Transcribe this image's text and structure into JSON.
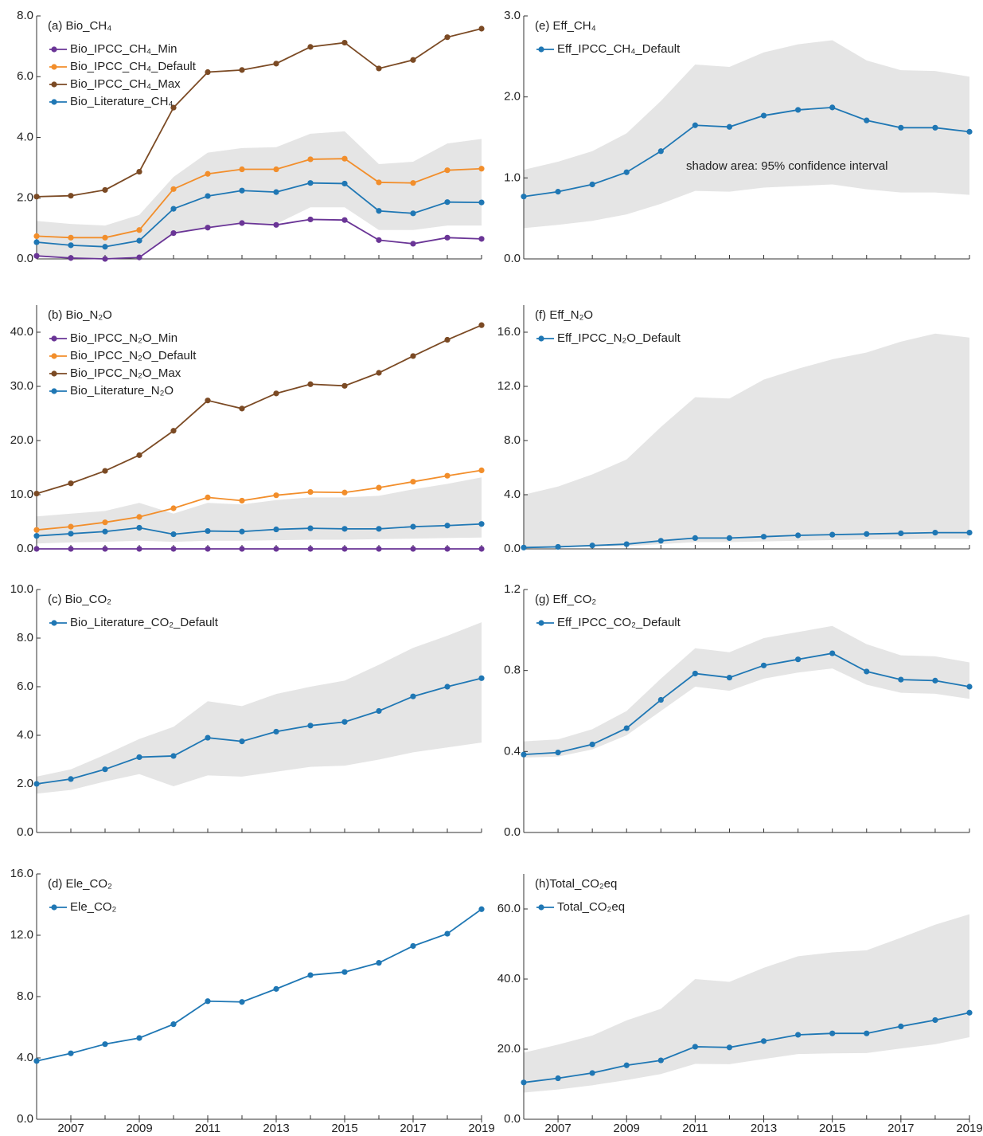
{
  "chart_data": [
    {
      "type": "line",
      "title": "(a) Bio_CH₄",
      "x": [
        2006,
        2007,
        2008,
        2009,
        2010,
        2011,
        2012,
        2013,
        2014,
        2015,
        2016,
        2017,
        2018,
        2019
      ],
      "xlim": [
        2006,
        2019
      ],
      "ylim": [
        0,
        8
      ],
      "yticks": [
        {
          "value": 0,
          "label": "0.0"
        },
        {
          "value": 2,
          "label": "2.0"
        },
        {
          "value": 4,
          "label": "4.0"
        },
        {
          "value": 6,
          "label": "6.0"
        },
        {
          "value": 8,
          "label": "8.0"
        }
      ],
      "band": {
        "color": "#e5e5e5",
        "lower": [
          0.1,
          0.05,
          0,
          0.1,
          0.85,
          1.05,
          1.2,
          1.15,
          1.7,
          1.7,
          0.95,
          0.95,
          1.1,
          1.1
        ],
        "upper": [
          1.25,
          1.15,
          1.1,
          1.45,
          2.7,
          3.5,
          3.65,
          3.68,
          4.12,
          4.2,
          3.12,
          3.2,
          3.8,
          3.95
        ]
      },
      "series": [
        {
          "name": "Bio_IPCC_CH₄_Min",
          "color": "#6a3596",
          "values": [
            0.1,
            0.03,
            0,
            0.05,
            0.85,
            1.03,
            1.18,
            1.12,
            1.3,
            1.28,
            0.62,
            0.5,
            0.7,
            0.66
          ]
        },
        {
          "name": "Bio_IPCC_CH₄_Default",
          "color": "#f28e2b",
          "values": [
            0.75,
            0.7,
            0.7,
            0.95,
            2.3,
            2.8,
            2.95,
            2.95,
            3.28,
            3.3,
            2.52,
            2.5,
            2.92,
            2.97
          ]
        },
        {
          "name": "Bio_IPCC_CH₄_Max",
          "color": "#7b4a24",
          "values": [
            2.05,
            2.08,
            2.27,
            2.87,
            4.98,
            6.15,
            6.22,
            6.43,
            6.98,
            7.12,
            6.27,
            6.55,
            7.3,
            7.58
          ]
        },
        {
          "name": "Bio_Literature_CH₄",
          "color": "#1f77b4",
          "values": [
            0.55,
            0.45,
            0.4,
            0.6,
            1.65,
            2.07,
            2.25,
            2.2,
            2.5,
            2.48,
            1.58,
            1.5,
            1.87,
            1.86
          ]
        }
      ]
    },
    {
      "type": "line",
      "title": "(b) Bio_N₂O",
      "x": [
        2006,
        2007,
        2008,
        2009,
        2010,
        2011,
        2012,
        2013,
        2014,
        2015,
        2016,
        2017,
        2018,
        2019
      ],
      "xlim": [
        2006,
        2019
      ],
      "ylim": [
        0,
        45
      ],
      "yticks": [
        {
          "value": 0,
          "label": "0.0"
        },
        {
          "value": 10,
          "label": "10.0"
        },
        {
          "value": 20,
          "label": "20.0"
        },
        {
          "value": 30,
          "label": "30.0"
        },
        {
          "value": 40,
          "label": "40.0"
        }
      ],
      "band": {
        "color": "#e5e5e5",
        "lower": [
          1,
          1.2,
          1.3,
          1.5,
          1.3,
          1.5,
          1.5,
          1.6,
          1.7,
          1.7,
          1.8,
          1.9,
          2,
          2.1
        ],
        "upper": [
          6,
          6.5,
          7,
          8.5,
          6.5,
          8.5,
          8.2,
          9,
          9.5,
          9.5,
          9.8,
          11,
          12,
          13.2
        ]
      },
      "series": [
        {
          "name": "Bio_IPCC_N₂O_Min",
          "color": "#6a3596",
          "values": [
            0,
            0,
            0,
            0,
            0,
            0,
            0,
            0,
            0,
            0,
            0,
            0,
            0,
            0
          ]
        },
        {
          "name": "Bio_IPCC_N₂O_Default",
          "color": "#f28e2b",
          "values": [
            3.5,
            4.1,
            4.9,
            5.9,
            7.5,
            9.5,
            8.9,
            9.9,
            10.5,
            10.4,
            11.3,
            12.4,
            13.5,
            14.5
          ]
        },
        {
          "name": "Bio_IPCC_N₂O_Max",
          "color": "#7b4a24",
          "values": [
            10.2,
            12.1,
            14.4,
            17.3,
            21.8,
            27.4,
            25.9,
            28.7,
            30.4,
            30.1,
            32.5,
            35.6,
            38.6,
            41.3
          ]
        },
        {
          "name": "Bio_Literature_N₂O",
          "color": "#1f77b4",
          "values": [
            2.4,
            2.8,
            3.2,
            3.9,
            2.7,
            3.3,
            3.2,
            3.6,
            3.8,
            3.7,
            3.7,
            4.1,
            4.3,
            4.6
          ]
        }
      ]
    },
    {
      "type": "line",
      "title": "(c) Bio_CO₂",
      "x": [
        2006,
        2007,
        2008,
        2009,
        2010,
        2011,
        2012,
        2013,
        2014,
        2015,
        2016,
        2017,
        2018,
        2019
      ],
      "xlim": [
        2006,
        2019
      ],
      "ylim": [
        0,
        10
      ],
      "yticks": [
        {
          "value": 0,
          "label": "0.0"
        },
        {
          "value": 2,
          "label": "2.0"
        },
        {
          "value": 4,
          "label": "4.0"
        },
        {
          "value": 6,
          "label": "6.0"
        },
        {
          "value": 8,
          "label": "8.0"
        },
        {
          "value": 10,
          "label": "10.0"
        }
      ],
      "band": {
        "color": "#e5e5e5",
        "lower": [
          1.6,
          1.75,
          2.1,
          2.4,
          1.9,
          2.35,
          2.3,
          2.5,
          2.7,
          2.75,
          3,
          3.3,
          3.5,
          3.7
        ],
        "upper": [
          2.3,
          2.6,
          3.2,
          3.85,
          4.35,
          5.4,
          5.2,
          5.7,
          6,
          6.25,
          6.9,
          7.6,
          8.1,
          8.65
        ]
      },
      "series": [
        {
          "name": "Bio_Literature_CO₂_Default",
          "color": "#1f77b4",
          "values": [
            2,
            2.2,
            2.6,
            3.1,
            3.15,
            3.9,
            3.75,
            4.15,
            4.4,
            4.55,
            5,
            5.6,
            6,
            6.35
          ]
        }
      ]
    },
    {
      "type": "line",
      "title": "(d) Ele_CO₂",
      "x": [
        2006,
        2007,
        2008,
        2009,
        2010,
        2011,
        2012,
        2013,
        2014,
        2015,
        2016,
        2017,
        2018,
        2019
      ],
      "xlim": [
        2006,
        2019
      ],
      "xticks": [
        2007,
        2009,
        2011,
        2013,
        2015,
        2017,
        2019
      ],
      "ylim": [
        0,
        16
      ],
      "yticks": [
        {
          "value": 0,
          "label": "0.0"
        },
        {
          "value": 4,
          "label": "4.0"
        },
        {
          "value": 8,
          "label": "8.0"
        },
        {
          "value": 12,
          "label": "12.0"
        },
        {
          "value": 16,
          "label": "16.0"
        }
      ],
      "series": [
        {
          "name": "Ele_CO₂",
          "color": "#1f77b4",
          "values": [
            3.8,
            4.3,
            4.9,
            5.3,
            6.2,
            7.7,
            7.65,
            8.5,
            9.4,
            9.6,
            10.2,
            11.3,
            12.1,
            13.7
          ]
        }
      ]
    },
    {
      "type": "line",
      "title": "(e) Eff_CH₄",
      "annotation": "shadow area: 95% confidence interval",
      "x": [
        2006,
        2007,
        2008,
        2009,
        2010,
        2011,
        2012,
        2013,
        2014,
        2015,
        2016,
        2017,
        2018,
        2019
      ],
      "xlim": [
        2006,
        2019
      ],
      "ylim": [
        0,
        3
      ],
      "yticks": [
        {
          "value": 0,
          "label": "0.0"
        },
        {
          "value": 1,
          "label": "1.0"
        },
        {
          "value": 2,
          "label": "2.0"
        },
        {
          "value": 3,
          "label": "3.0"
        }
      ],
      "band": {
        "color": "#e5e5e5",
        "lower": [
          0.38,
          0.42,
          0.47,
          0.55,
          0.68,
          0.84,
          0.83,
          0.88,
          0.9,
          0.92,
          0.86,
          0.82,
          0.82,
          0.79
        ],
        "upper": [
          1.1,
          1.2,
          1.33,
          1.55,
          1.95,
          2.4,
          2.37,
          2.55,
          2.65,
          2.7,
          2.45,
          2.33,
          2.32,
          2.25
        ]
      },
      "series": [
        {
          "name": "Eff_IPCC_CH₄_Default",
          "color": "#1f77b4",
          "values": [
            0.77,
            0.83,
            0.92,
            1.07,
            1.33,
            1.65,
            1.63,
            1.77,
            1.84,
            1.87,
            1.71,
            1.62,
            1.62,
            1.57
          ]
        }
      ]
    },
    {
      "type": "line",
      "title": "(f) Eff_N₂O",
      "x": [
        2006,
        2007,
        2008,
        2009,
        2010,
        2011,
        2012,
        2013,
        2014,
        2015,
        2016,
        2017,
        2018,
        2019
      ],
      "xlim": [
        2006,
        2019
      ],
      "ylim": [
        0,
        18
      ],
      "yticks": [
        {
          "value": 0,
          "label": "0.0"
        },
        {
          "value": 4,
          "label": "4.0"
        },
        {
          "value": 8,
          "label": "8.0"
        },
        {
          "value": 12,
          "label": "12.0"
        },
        {
          "value": 16,
          "label": "16.0"
        }
      ],
      "band": {
        "color": "#e5e5e5",
        "lower": [
          0.05,
          0.1,
          0.15,
          0.2,
          0.35,
          0.5,
          0.5,
          0.55,
          0.6,
          0.65,
          0.7,
          0.7,
          0.75,
          0.75
        ],
        "upper": [
          4,
          4.6,
          5.5,
          6.6,
          9,
          11.2,
          11.1,
          12.5,
          13.3,
          14,
          14.5,
          15.3,
          15.9,
          15.6
        ]
      },
      "series": [
        {
          "name": "Eff_IPCC_N₂O_Default",
          "color": "#1f77b4",
          "values": [
            0.1,
            0.15,
            0.25,
            0.35,
            0.6,
            0.8,
            0.8,
            0.9,
            1,
            1.05,
            1.1,
            1.15,
            1.2,
            1.2
          ]
        }
      ]
    },
    {
      "type": "line",
      "title": "(g) Eff_CO₂",
      "x": [
        2006,
        2007,
        2008,
        2009,
        2010,
        2011,
        2012,
        2013,
        2014,
        2015,
        2016,
        2017,
        2018,
        2019
      ],
      "xlim": [
        2006,
        2019
      ],
      "ylim": [
        0,
        1.2
      ],
      "yticks": [
        {
          "value": 0,
          "label": "0.0"
        },
        0.4,
        0.8,
        1.2
      ],
      "band": {
        "color": "#e5e5e5",
        "lower": [
          0.37,
          0.375,
          0.41,
          0.48,
          0.6,
          0.72,
          0.7,
          0.76,
          0.79,
          0.81,
          0.73,
          0.69,
          0.685,
          0.66
        ],
        "upper": [
          0.45,
          0.46,
          0.51,
          0.6,
          0.76,
          0.91,
          0.89,
          0.96,
          0.99,
          1.02,
          0.93,
          0.875,
          0.87,
          0.84
        ]
      },
      "series": [
        {
          "name": "Eff_IPCC_CO₂_Default",
          "color": "#1f77b4",
          "values": [
            0.385,
            0.395,
            0.435,
            0.515,
            0.655,
            0.785,
            0.765,
            0.825,
            0.855,
            0.885,
            0.795,
            0.755,
            0.75,
            0.72
          ]
        }
      ]
    },
    {
      "type": "line",
      "title": "(h)Total_CO₂eq",
      "x": [
        2006,
        2007,
        2008,
        2009,
        2010,
        2011,
        2012,
        2013,
        2014,
        2015,
        2016,
        2017,
        2018,
        2019
      ],
      "xlim": [
        2006,
        2019
      ],
      "xticks": [
        2007,
        2009,
        2011,
        2013,
        2015,
        2017,
        2019
      ],
      "ylim": [
        0,
        70
      ],
      "yticks": [
        {
          "value": 0,
          "label": "0.0"
        },
        {
          "value": 20,
          "label": "20.0"
        },
        {
          "value": 40,
          "label": "40.0"
        },
        {
          "value": 60,
          "label": "60.0"
        }
      ],
      "band": {
        "color": "#e5e5e5",
        "lower": [
          7.6,
          8.5,
          9.7,
          11.2,
          12.9,
          15.8,
          15.7,
          17.2,
          18.6,
          18.8,
          18.9,
          20.2,
          21.4,
          23.4
        ],
        "upper": [
          19,
          21.3,
          23.9,
          28.2,
          31.5,
          40,
          39.2,
          43.2,
          46.5,
          47.6,
          48.2,
          51.8,
          55.5,
          58.5
        ]
      },
      "series": [
        {
          "name": "Total_CO₂eq",
          "color": "#1f77b4",
          "values": [
            10.5,
            11.7,
            13.2,
            15.4,
            16.8,
            20.7,
            20.5,
            22.3,
            24.1,
            24.5,
            24.5,
            26.5,
            28.3,
            30.4
          ]
        }
      ]
    }
  ]
}
